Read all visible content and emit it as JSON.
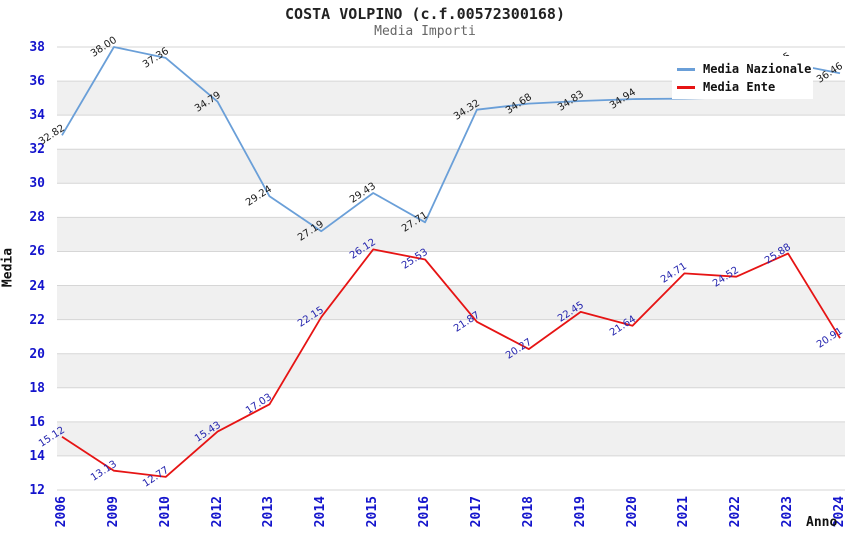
{
  "window": {
    "title": "COSTA VOLPINO (c.f.00572300168)",
    "subtitle": "Media Importi"
  },
  "legend": {
    "position": "top-right",
    "items": [
      {
        "label": "Media Nazionale",
        "color": "#6a9fd8"
      },
      {
        "label": "Media Ente",
        "color": "#e61414"
      }
    ]
  },
  "colors": {
    "tick": "#1414cc",
    "grid": "#d6d6d6",
    "band": "#f0f0f0",
    "title": "#222222",
    "subtitle": "#666666"
  },
  "chart_data": {
    "type": "line",
    "title": "COSTA VOLPINO (c.f.00572300168)",
    "subtitle": "Media Importi",
    "xlabel": "Anno",
    "ylabel": "Media",
    "ylim": [
      12,
      38
    ],
    "yticks": [
      12,
      14,
      16,
      18,
      20,
      22,
      24,
      26,
      28,
      30,
      32,
      34,
      36,
      38
    ],
    "grid": "horizontal-stripes",
    "legend_position": "top-right",
    "categories": [
      "2006",
      "2009",
      "2010",
      "2012",
      "2013",
      "2014",
      "2015",
      "2016",
      "2017",
      "2018",
      "2019",
      "2020",
      "2021",
      "2022",
      "2023",
      "2024"
    ],
    "series": [
      {
        "name": "Media Nazionale",
        "color": "#6a9fd8",
        "label_color": "#1a1a1a",
        "values": [
          32.82,
          38.0,
          37.36,
          34.79,
          29.24,
          27.19,
          29.43,
          27.71,
          34.32,
          34.68,
          34.83,
          34.94,
          34.97,
          35.05,
          37.05,
          36.46
        ],
        "point_labels": [
          "32.82",
          "38.00",
          "37.36",
          "34.79",
          "29.24",
          "27.19",
          "29.43",
          "27.71",
          "34.32",
          "34.68",
          "34.83",
          "34.94",
          null,
          null,
          "37.05",
          "36.46"
        ]
      },
      {
        "name": "Media Ente",
        "color": "#e61414",
        "label_color": "#2424ae",
        "values": [
          15.12,
          13.13,
          12.77,
          15.43,
          17.03,
          22.15,
          26.12,
          25.53,
          21.87,
          20.27,
          22.45,
          21.64,
          24.71,
          24.52,
          25.88,
          20.91
        ],
        "point_labels": [
          "15.12",
          "13.13",
          "12.77",
          "15.43",
          "17.03",
          "22.15",
          "26.12",
          "25.53",
          "21.87",
          "20.27",
          "22.45",
          "21.64",
          "24.71",
          "24.52",
          "25.88",
          "20.91"
        ]
      }
    ]
  }
}
